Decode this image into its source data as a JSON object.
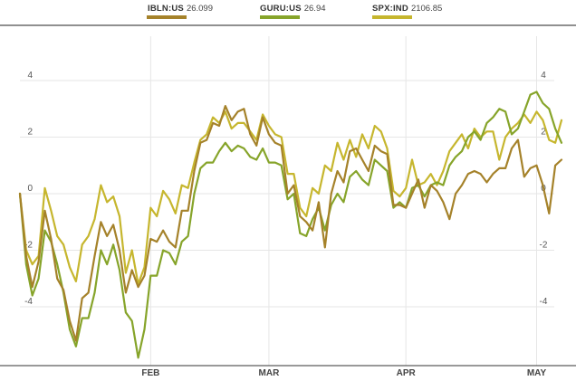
{
  "legend": [
    {
      "ticker": "IBLN:US",
      "value": "26.099",
      "color": "#a5822a"
    },
    {
      "ticker": "GURU:US",
      "value": "26.94",
      "color": "#86a42a"
    },
    {
      "ticker": "SPX:IND",
      "value": "2106.85",
      "color": "#c6b62e"
    }
  ],
  "chart_data": {
    "type": "line",
    "ylim": [
      -6,
      6
    ],
    "y_ticks": [
      4,
      2,
      0,
      -2,
      -4
    ],
    "y_tick_labels": [
      "4",
      "2",
      "0",
      "-2",
      "-4"
    ],
    "x_ticks": [
      {
        "label": "FEB",
        "index": 21
      },
      {
        "label": "MAR",
        "index": 40
      },
      {
        "label": "APR",
        "index": 62
      },
      {
        "label": "MAY",
        "index": 83
      }
    ],
    "grid": true,
    "legend_position": "top",
    "series": [
      {
        "name": "IBLN:US",
        "color": "#a5822a",
        "values": [
          0.0,
          -2.2,
          -3.3,
          -2.4,
          -0.6,
          -1.6,
          -3.0,
          -3.4,
          -4.5,
          -5.2,
          -3.7,
          -3.5,
          -2.2,
          -1.0,
          -1.5,
          -1.1,
          -2.0,
          -3.5,
          -2.7,
          -3.3,
          -2.9,
          -1.6,
          -1.7,
          -1.3,
          -1.7,
          -1.9,
          -0.6,
          -0.6,
          0.8,
          1.8,
          1.9,
          2.5,
          2.4,
          3.1,
          2.6,
          2.9,
          3.0,
          2.1,
          1.7,
          2.7,
          2.1,
          1.8,
          1.7,
          0.0,
          0.3,
          -0.8,
          -1.0,
          -1.3,
          -0.3,
          -1.9,
          0.0,
          0.8,
          0.4,
          1.5,
          1.6,
          1.2,
          0.8,
          1.7,
          1.5,
          1.4,
          -0.4,
          -0.4,
          -0.5,
          0.0,
          0.5,
          -0.5,
          0.3,
          0.1,
          -0.3,
          -0.9,
          0.0,
          0.3,
          0.7,
          0.8,
          0.7,
          0.4,
          0.7,
          0.9,
          0.9,
          1.6,
          1.9,
          0.6,
          0.9,
          1.0,
          0.3,
          -0.7,
          1.0,
          1.2
        ]
      },
      {
        "name": "GURU:US",
        "color": "#86a42a",
        "values": [
          0.0,
          -2.5,
          -3.6,
          -3.0,
          -1.3,
          -1.7,
          -2.5,
          -3.5,
          -4.8,
          -5.4,
          -4.4,
          -4.4,
          -3.5,
          -2.0,
          -2.5,
          -1.8,
          -2.7,
          -4.2,
          -4.5,
          -5.8,
          -4.8,
          -2.9,
          -2.9,
          -2.0,
          -2.1,
          -2.5,
          -1.7,
          -1.5,
          0.0,
          0.9,
          1.1,
          1.1,
          1.5,
          1.8,
          1.5,
          1.7,
          1.6,
          1.3,
          1.2,
          1.6,
          1.1,
          1.1,
          1.0,
          -0.2,
          0.0,
          -1.4,
          -1.5,
          -0.9,
          -0.5,
          -1.3,
          -0.4,
          0.0,
          -0.3,
          0.6,
          0.8,
          0.5,
          0.3,
          1.2,
          1.0,
          0.8,
          -0.5,
          -0.3,
          -0.5,
          0.2,
          0.3,
          -0.1,
          0.3,
          0.4,
          0.3,
          1.0,
          1.3,
          1.5,
          2.0,
          2.2,
          1.9,
          2.5,
          2.7,
          3.0,
          2.9,
          2.1,
          2.3,
          2.9,
          3.5,
          3.6,
          3.2,
          3.0,
          2.3,
          1.8
        ]
      },
      {
        "name": "SPX:IND",
        "color": "#c6b62e",
        "values": [
          0.0,
          -2.0,
          -2.5,
          -2.2,
          0.2,
          -0.6,
          -1.5,
          -1.8,
          -2.6,
          -3.1,
          -1.8,
          -1.5,
          -0.9,
          0.3,
          -0.3,
          -0.1,
          -0.8,
          -2.8,
          -2.0,
          -3.2,
          -2.6,
          -0.5,
          -0.8,
          0.1,
          -0.2,
          -0.7,
          0.3,
          0.2,
          1.1,
          1.9,
          2.1,
          2.7,
          2.5,
          2.9,
          2.3,
          2.5,
          2.5,
          2.2,
          1.9,
          2.8,
          2.4,
          2.1,
          2.0,
          0.7,
          0.7,
          -0.5,
          -0.8,
          0.2,
          0.0,
          1.0,
          0.8,
          1.8,
          1.2,
          1.9,
          1.3,
          2.1,
          1.6,
          2.4,
          2.2,
          1.6,
          0.1,
          -0.1,
          0.2,
          1.2,
          0.3,
          0.4,
          0.7,
          0.3,
          0.8,
          1.5,
          1.8,
          2.1,
          1.6,
          2.3,
          2.0,
          2.2,
          2.2,
          1.2,
          2.0,
          2.3,
          2.5,
          2.8,
          2.5,
          2.9,
          2.6,
          1.9,
          1.8,
          2.6
        ]
      }
    ]
  }
}
